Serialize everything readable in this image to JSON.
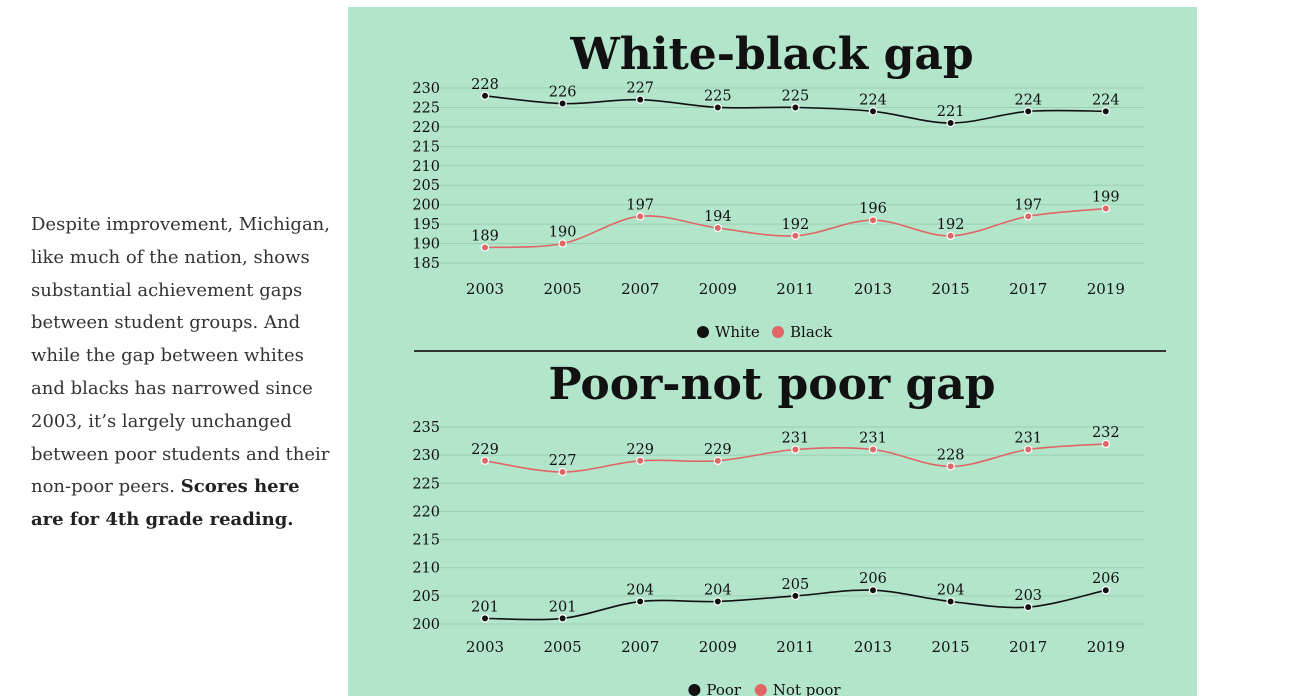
{
  "caption": {
    "text": "Despite improvement, Michigan, like much of the nation, shows substantial achievement gaps between student groups. And while the gap between whites and blacks has narrowed since 2003, it’s largely unchanged between poor students and their non-poor peers.",
    "bold": "Scores here are for 4th grade reading."
  },
  "colors": {
    "panel_background": "#b3e5cb",
    "series_dark": "#111111",
    "series_red": "#e06666",
    "divider": "#333333"
  },
  "chart_data": [
    {
      "type": "line",
      "title": "White-black gap",
      "categories": [
        "2003",
        "2005",
        "2007",
        "2009",
        "2011",
        "2013",
        "2015",
        "2017",
        "2019"
      ],
      "yticks": [
        185,
        190,
        195,
        200,
        205,
        210,
        215,
        220,
        225,
        230
      ],
      "ylim": [
        185,
        230
      ],
      "grid": true,
      "legend_position": "bottom",
      "series": [
        {
          "name": "White",
          "color": "#111111",
          "values": [
            228,
            226,
            227,
            225,
            225,
            224,
            221,
            224,
            224
          ]
        },
        {
          "name": "Black",
          "color": "#e06666",
          "values": [
            189,
            190,
            197,
            194,
            192,
            196,
            192,
            197,
            199
          ]
        }
      ]
    },
    {
      "type": "line",
      "title": "Poor-not poor gap",
      "categories": [
        "2003",
        "2005",
        "2007",
        "2009",
        "2011",
        "2013",
        "2015",
        "2017",
        "2019"
      ],
      "yticks": [
        200,
        205,
        210,
        215,
        220,
        225,
        230,
        235
      ],
      "ylim": [
        200,
        235
      ],
      "grid": true,
      "legend_position": "bottom",
      "series": [
        {
          "name": "Poor",
          "color": "#111111",
          "values": [
            201,
            201,
            204,
            204,
            205,
            206,
            204,
            203,
            206
          ]
        },
        {
          "name": "Not poor",
          "color": "#e06666",
          "values": [
            229,
            227,
            229,
            229,
            231,
            231,
            228,
            231,
            232
          ]
        }
      ]
    }
  ]
}
